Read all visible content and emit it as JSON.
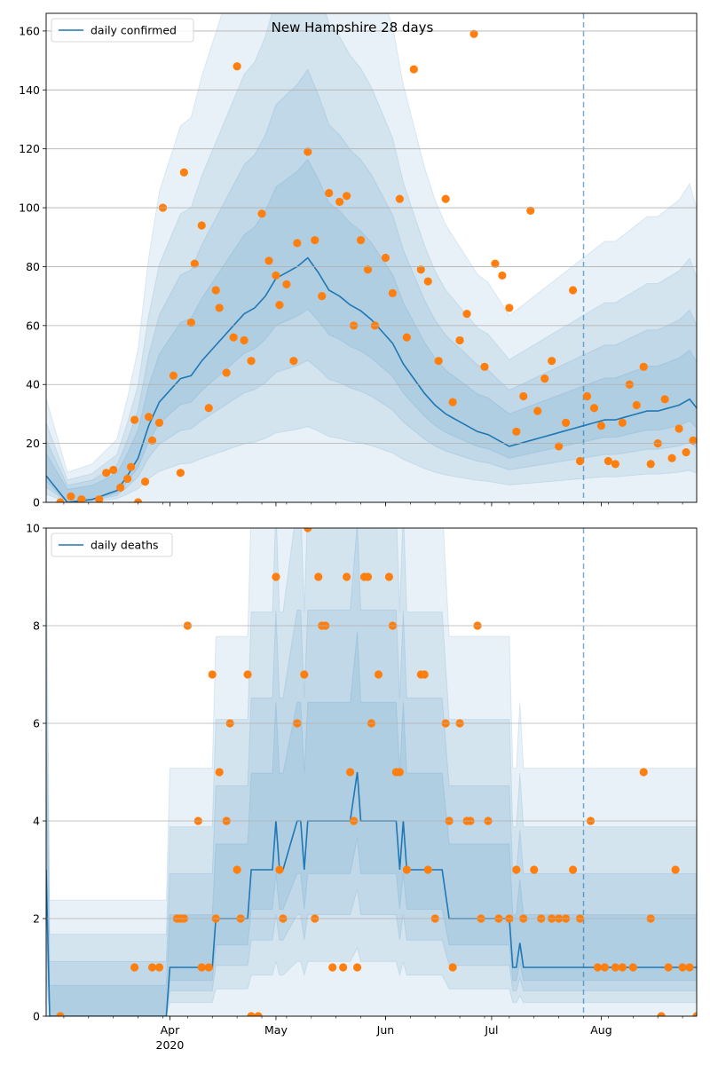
{
  "colors": {
    "band": "#1f77b4",
    "line": "#1f77b4",
    "points": "#ff7f0e",
    "grid": "#b0b0b0",
    "vline": "#1f77b4"
  },
  "chart_data": [
    {
      "type": "line",
      "title": "New Hampshire 28 days",
      "legend": {
        "label": "daily confirmed",
        "placement": "top-left"
      },
      "x_start": "2020-02-26",
      "x_end": "2020-08-28",
      "vline_date": "2020-07-27",
      "ylim": [
        0,
        166
      ],
      "yticks": [
        0,
        20,
        40,
        60,
        80,
        100,
        120,
        140,
        160
      ],
      "grid": true,
      "x_ticks": [
        "Apr",
        "May",
        "Jun",
        "Jul",
        "Aug"
      ],
      "x_year_label": "",
      "series": [
        {
          "name": "daily confirmed",
          "role": "line",
          "x": [
            "2020-02-26",
            "2020-03-03",
            "2020-03-10",
            "2020-03-17",
            "2020-03-20",
            "2020-03-23",
            "2020-03-26",
            "2020-03-29",
            "2020-04-01",
            "2020-04-04",
            "2020-04-07",
            "2020-04-10",
            "2020-04-13",
            "2020-04-16",
            "2020-04-19",
            "2020-04-22",
            "2020-04-25",
            "2020-04-28",
            "2020-05-01",
            "2020-05-04",
            "2020-05-07",
            "2020-05-10",
            "2020-05-13",
            "2020-05-16",
            "2020-05-19",
            "2020-05-22",
            "2020-05-25",
            "2020-05-28",
            "2020-05-31",
            "2020-06-03",
            "2020-06-06",
            "2020-06-09",
            "2020-06-12",
            "2020-06-15",
            "2020-06-18",
            "2020-06-21",
            "2020-06-24",
            "2020-06-27",
            "2020-06-30",
            "2020-07-03",
            "2020-07-06",
            "2020-07-09",
            "2020-07-12",
            "2020-07-15",
            "2020-07-18",
            "2020-07-21",
            "2020-07-24",
            "2020-07-27",
            "2020-07-30",
            "2020-08-02",
            "2020-08-05",
            "2020-08-08",
            "2020-08-11",
            "2020-08-14",
            "2020-08-17",
            "2020-08-20",
            "2020-08-23",
            "2020-08-26",
            "2020-08-28"
          ],
          "y": [
            9,
            0,
            1,
            4,
            9,
            15,
            26,
            34,
            38,
            42,
            43,
            48,
            52,
            56,
            60,
            64,
            66,
            70,
            76,
            78,
            80,
            83,
            78,
            72,
            70,
            67,
            65,
            62,
            58,
            54,
            47,
            42,
            37,
            33,
            30,
            28,
            26,
            24,
            23,
            21,
            19,
            20,
            21,
            22,
            23,
            24,
            25,
            26,
            27,
            28,
            28,
            29,
            30,
            31,
            31,
            32,
            33,
            35,
            32
          ]
        },
        {
          "name": "",
          "role": "points",
          "x": [
            "2020-03-01",
            "2020-03-04",
            "2020-03-07",
            "2020-03-12",
            "2020-03-14",
            "2020-03-16",
            "2020-03-18",
            "2020-03-20",
            "2020-03-21",
            "2020-03-22",
            "2020-03-23",
            "2020-03-25",
            "2020-03-26",
            "2020-03-27",
            "2020-03-29",
            "2020-03-30",
            "2020-04-02",
            "2020-04-04",
            "2020-04-05",
            "2020-04-07",
            "2020-04-08",
            "2020-04-10",
            "2020-04-12",
            "2020-04-14",
            "2020-04-15",
            "2020-04-17",
            "2020-04-19",
            "2020-04-20",
            "2020-04-22",
            "2020-04-24",
            "2020-04-27",
            "2020-04-29",
            "2020-05-01",
            "2020-05-02",
            "2020-05-04",
            "2020-05-06",
            "2020-05-07",
            "2020-05-10",
            "2020-05-12",
            "2020-05-14",
            "2020-05-16",
            "2020-05-19",
            "2020-05-21",
            "2020-05-23",
            "2020-05-25",
            "2020-05-27",
            "2020-05-29",
            "2020-06-01",
            "2020-06-03",
            "2020-06-05",
            "2020-06-07",
            "2020-06-09",
            "2020-06-11",
            "2020-06-13",
            "2020-06-16",
            "2020-06-18",
            "2020-06-20",
            "2020-06-22",
            "2020-06-24",
            "2020-06-26",
            "2020-06-29",
            "2020-07-02",
            "2020-07-04",
            "2020-07-06",
            "2020-07-08",
            "2020-07-10",
            "2020-07-12",
            "2020-07-14",
            "2020-07-16",
            "2020-07-18",
            "2020-07-20",
            "2020-07-22",
            "2020-07-24",
            "2020-07-26",
            "2020-07-28",
            "2020-07-30",
            "2020-08-01",
            "2020-08-03",
            "2020-08-05",
            "2020-08-07",
            "2020-08-09",
            "2020-08-11",
            "2020-08-13",
            "2020-08-15",
            "2020-08-17",
            "2020-08-19",
            "2020-08-21",
            "2020-08-23",
            "2020-08-25",
            "2020-08-27"
          ],
          "y": [
            0,
            2,
            1,
            1,
            10,
            11,
            5,
            8,
            12,
            28,
            0,
            7,
            29,
            21,
            27,
            100,
            43,
            10,
            112,
            61,
            81,
            94,
            32,
            72,
            66,
            44,
            56,
            148,
            55,
            48,
            98,
            82,
            77,
            67,
            74,
            48,
            88,
            119,
            89,
            70,
            105,
            102,
            104,
            60,
            89,
            79,
            60,
            83,
            71,
            103,
            56,
            147,
            79,
            75,
            48,
            103,
            34,
            55,
            64,
            159,
            46,
            81,
            77,
            66,
            24,
            36,
            99,
            31,
            42,
            48,
            19,
            27,
            72,
            14,
            36,
            32,
            26,
            14,
            13,
            27,
            40,
            33,
            46,
            13,
            20,
            35,
            15,
            25,
            17,
            21
          ]
        }
      ],
      "bands_note": "shaded uncertainty bands around the line"
    },
    {
      "type": "line",
      "title": "",
      "legend": {
        "label": "daily deaths",
        "placement": "top-left"
      },
      "x_start": "2020-02-26",
      "x_end": "2020-08-28",
      "vline_date": "2020-07-27",
      "ylim": [
        0,
        10
      ],
      "yticks": [
        0,
        2,
        4,
        6,
        8,
        10
      ],
      "grid": true,
      "x_ticks": [
        "Apr",
        "May",
        "Jun",
        "Jul",
        "Aug"
      ],
      "x_year_label": "2020",
      "series": [
        {
          "name": "daily deaths",
          "role": "line",
          "x": [
            "2020-02-26",
            "2020-02-27",
            "2020-03-31",
            "2020-04-01",
            "2020-04-13",
            "2020-04-14",
            "2020-04-23",
            "2020-04-24",
            "2020-04-30",
            "2020-05-01",
            "2020-05-02",
            "2020-05-03",
            "2020-05-07",
            "2020-05-08",
            "2020-05-09",
            "2020-05-10",
            "2020-05-11",
            "2020-05-22",
            "2020-05-24",
            "2020-05-25",
            "2020-06-04",
            "2020-06-05",
            "2020-06-06",
            "2020-06-07",
            "2020-06-08",
            "2020-06-17",
            "2020-06-19",
            "2020-06-21",
            "2020-07-06",
            "2020-07-07",
            "2020-07-08",
            "2020-07-09",
            "2020-07-10",
            "2020-07-11",
            "2020-07-28",
            "2020-08-28"
          ],
          "y": [
            3,
            0,
            0,
            1,
            1,
            2,
            2,
            3,
            3,
            4,
            3,
            3,
            4,
            4,
            3,
            4,
            4,
            4,
            5,
            4,
            4,
            3,
            4,
            3,
            3,
            3,
            2,
            2,
            2,
            1,
            1,
            1.5,
            1,
            1,
            1,
            1
          ]
        },
        {
          "name": "",
          "role": "points",
          "x": [
            "2020-03-01",
            "2020-03-22",
            "2020-03-27",
            "2020-03-29",
            "2020-04-03",
            "2020-04-04",
            "2020-04-05",
            "2020-04-06",
            "2020-04-09",
            "2020-04-10",
            "2020-04-12",
            "2020-04-13",
            "2020-04-14",
            "2020-04-15",
            "2020-04-17",
            "2020-04-18",
            "2020-04-20",
            "2020-04-21",
            "2020-04-23",
            "2020-04-24",
            "2020-04-26",
            "2020-05-01",
            "2020-05-02",
            "2020-05-03",
            "2020-05-07",
            "2020-05-09",
            "2020-05-10",
            "2020-05-12",
            "2020-05-13",
            "2020-05-14",
            "2020-05-15",
            "2020-05-17",
            "2020-05-20",
            "2020-05-21",
            "2020-05-22",
            "2020-05-23",
            "2020-05-24",
            "2020-05-26",
            "2020-05-27",
            "2020-05-28",
            "2020-05-30",
            "2020-06-02",
            "2020-06-03",
            "2020-06-04",
            "2020-06-05",
            "2020-06-07",
            "2020-06-11",
            "2020-06-12",
            "2020-06-13",
            "2020-06-15",
            "2020-06-18",
            "2020-06-19",
            "2020-06-20",
            "2020-06-22",
            "2020-06-24",
            "2020-06-25",
            "2020-06-27",
            "2020-06-28",
            "2020-06-30",
            "2020-07-03",
            "2020-07-06",
            "2020-07-08",
            "2020-07-10",
            "2020-07-13",
            "2020-07-15",
            "2020-07-18",
            "2020-07-20",
            "2020-07-22",
            "2020-07-24",
            "2020-07-26",
            "2020-07-29",
            "2020-07-31",
            "2020-08-02",
            "2020-08-05",
            "2020-08-07",
            "2020-08-10",
            "2020-08-13",
            "2020-08-15",
            "2020-08-18",
            "2020-08-20",
            "2020-08-22",
            "2020-08-24",
            "2020-08-26",
            "2020-08-28"
          ],
          "y": [
            0,
            1,
            1,
            1,
            2,
            2,
            2,
            8,
            4,
            1,
            1,
            7,
            2,
            5,
            4,
            6,
            3,
            2,
            7,
            0,
            0,
            9,
            3,
            2,
            6,
            7,
            10,
            2,
            9,
            8,
            8,
            1,
            1,
            9,
            5,
            4,
            1,
            9,
            9,
            6,
            7,
            9,
            8,
            5,
            5,
            3,
            7,
            7,
            3,
            2,
            6,
            4,
            1,
            6,
            4,
            4,
            8,
            2,
            4,
            2,
            2,
            3,
            2,
            3,
            2,
            2,
            2,
            2,
            3,
            2,
            4,
            1,
            1,
            1,
            1,
            1,
            5,
            2,
            0,
            1,
            3,
            1,
            1,
            0
          ]
        }
      ]
    }
  ]
}
